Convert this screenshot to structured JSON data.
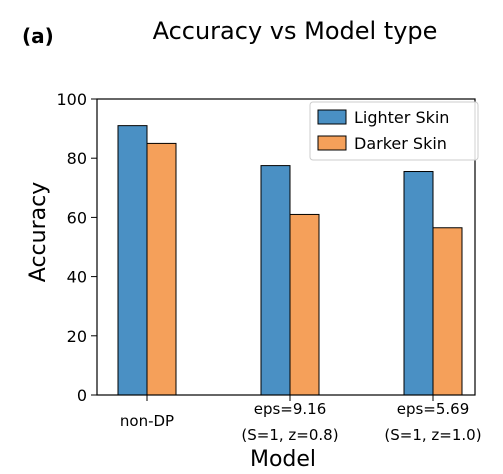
{
  "chart_data": {
    "type": "bar",
    "panel_label": "(a)",
    "title": "Accuracy vs Model type",
    "xlabel": "Model",
    "ylabel": "Accuracy",
    "ylim": [
      0,
      100
    ],
    "yticks": [
      "0",
      "20",
      "40",
      "60",
      "80",
      "100"
    ],
    "categories": [
      [
        "non-DP"
      ],
      [
        "eps=9.16",
        "(S=1, z=0.8)"
      ],
      [
        "eps=5.69",
        "(S=1, z=1.0)"
      ]
    ],
    "series": [
      {
        "name": "Lighter Skin",
        "color": "#4a90c4",
        "values": [
          91,
          77.5,
          75.5
        ]
      },
      {
        "name": "Darker Skin",
        "color": "#f5a05a",
        "values": [
          85,
          61,
          56.5
        ]
      }
    ],
    "grid": false,
    "legend_position": "top-right"
  }
}
